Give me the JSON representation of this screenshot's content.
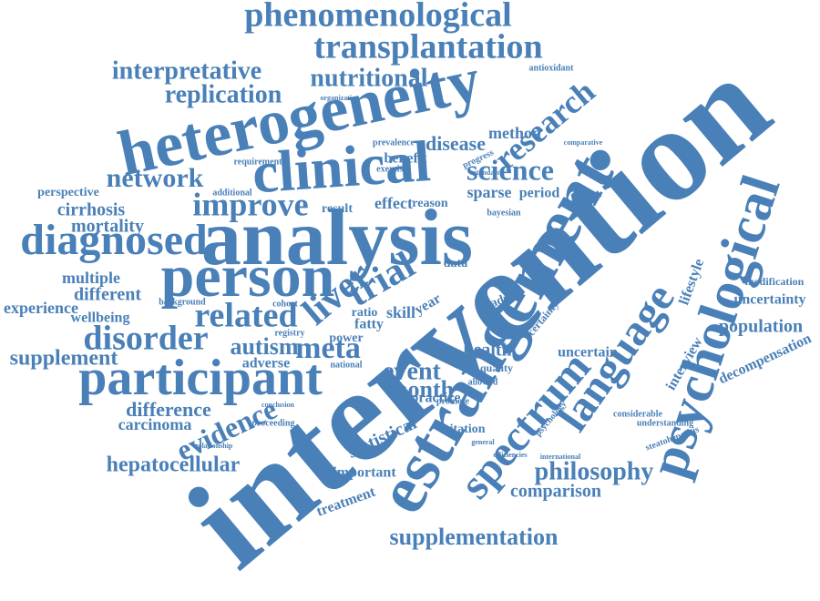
{
  "words": [
    "intervention",
    "estrangement",
    "psychological",
    "analysis",
    "heterogeneity",
    "clinical",
    "person",
    "participant",
    "diagnosed",
    "phenomenological",
    "transplantation",
    "interpretative",
    "nutritional",
    "replication",
    "research",
    "language",
    "spectrum",
    "liver",
    "trial",
    "improve",
    "network",
    "science",
    "disease",
    "method",
    "cirrhosis",
    "mortality",
    "related",
    "disorder",
    "autism",
    "meta",
    "supplement",
    "experience",
    "multiple",
    "different",
    "wellbeing",
    "difference",
    "carcinoma",
    "evidence",
    "hepatocellular",
    "adverse",
    "event",
    "month",
    "statistical",
    "practice",
    "health",
    "philosophy",
    "comparison",
    "supplementation",
    "important",
    "treatment",
    "uncertain",
    "population",
    "uncertainty",
    "modification",
    "decompensation",
    "lifestyle",
    "interview",
    "benefit",
    "effect",
    "result",
    "sparse",
    "period",
    "reason",
    "skill",
    "fatty",
    "ratio",
    "year",
    "advice",
    "certainty",
    "perspective",
    "additional",
    "requirement",
    "antioxidant",
    "organization",
    "prevalence",
    "progress",
    "exercise",
    "standard",
    "comparative",
    "bayesian",
    "registry",
    "national",
    "power",
    "cohort",
    "background",
    "conclusion",
    "proceeding",
    "relationship",
    "understanding",
    "steatohepatitis",
    "considerable",
    "international",
    "efficiencies",
    "general",
    "psychology",
    "quality",
    "allowed",
    "citation",
    "promote",
    "data"
  ]
}
